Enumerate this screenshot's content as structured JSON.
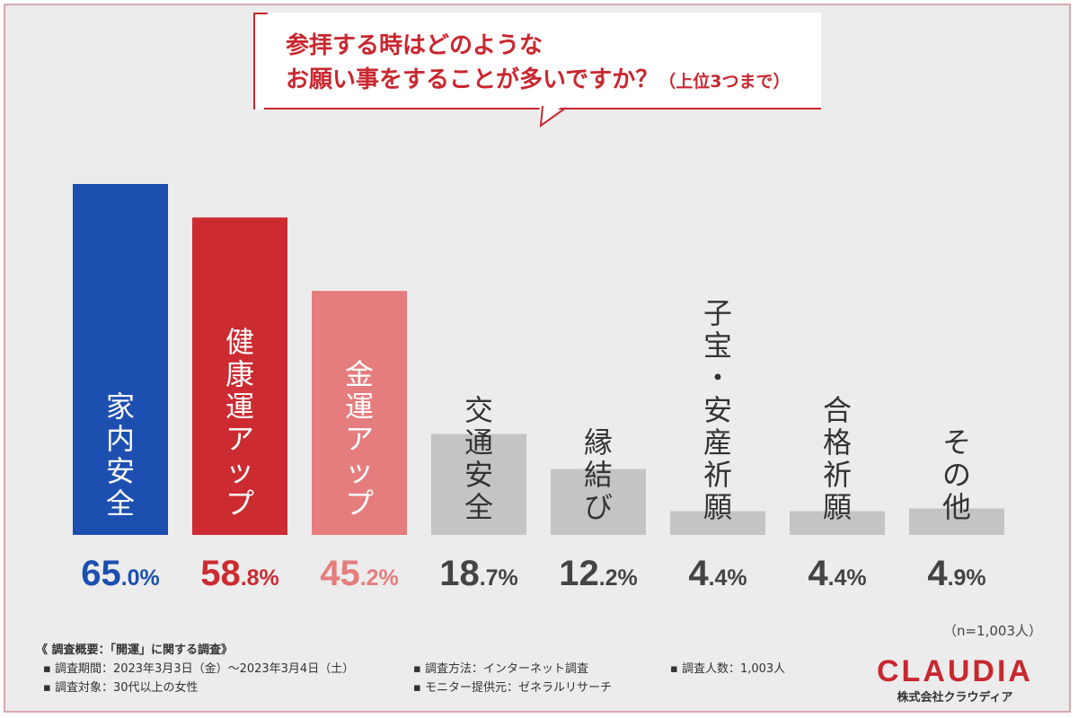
{
  "question": {
    "line1": "参拝する時はどのような",
    "line2": "お願い事をすることが多いですか？",
    "line2_suffix": "（上位3つまで）"
  },
  "sample_note": "（n=1,003人）",
  "survey": {
    "title": "《 調査概要：「開運」に関する調査》",
    "period": "▪ 調査期間：2023年3月3日（金）～2023年3月4日（土）",
    "method": "▪ 調査方法：インターネット調査",
    "count": "▪ 調査人数：1,003人",
    "target": "▪ 調査対象：30代以上の女性",
    "provider": "▪ モニター提供元：ゼネラルリサーチ"
  },
  "brand": {
    "logo": "CLAUDIA",
    "company": "株式会社クラウディア"
  },
  "colors": {
    "blue": "#1c4fb0",
    "red": "#cc2b31",
    "pink": "#e57c7d",
    "gray": "#c4c4c4",
    "gray_text": "#444444",
    "accent": "#c9272f"
  },
  "chart_data": {
    "type": "bar",
    "categories": [
      "家内安全",
      "健康運アップ",
      "金運アップ",
      "交通安全",
      "縁結び",
      "子宝・安産祈願",
      "合格祈願",
      "その他"
    ],
    "values": [
      65.0,
      58.8,
      45.2,
      18.7,
      12.2,
      4.4,
      4.4,
      4.9
    ],
    "value_labels": [
      "65.0%",
      "58.8%",
      "45.2%",
      "18.7%",
      "12.2%",
      "4.4%",
      "4.4%",
      "4.9%"
    ],
    "unit": "%",
    "ylim": [
      0,
      65
    ],
    "grid": false,
    "legend": "none"
  }
}
